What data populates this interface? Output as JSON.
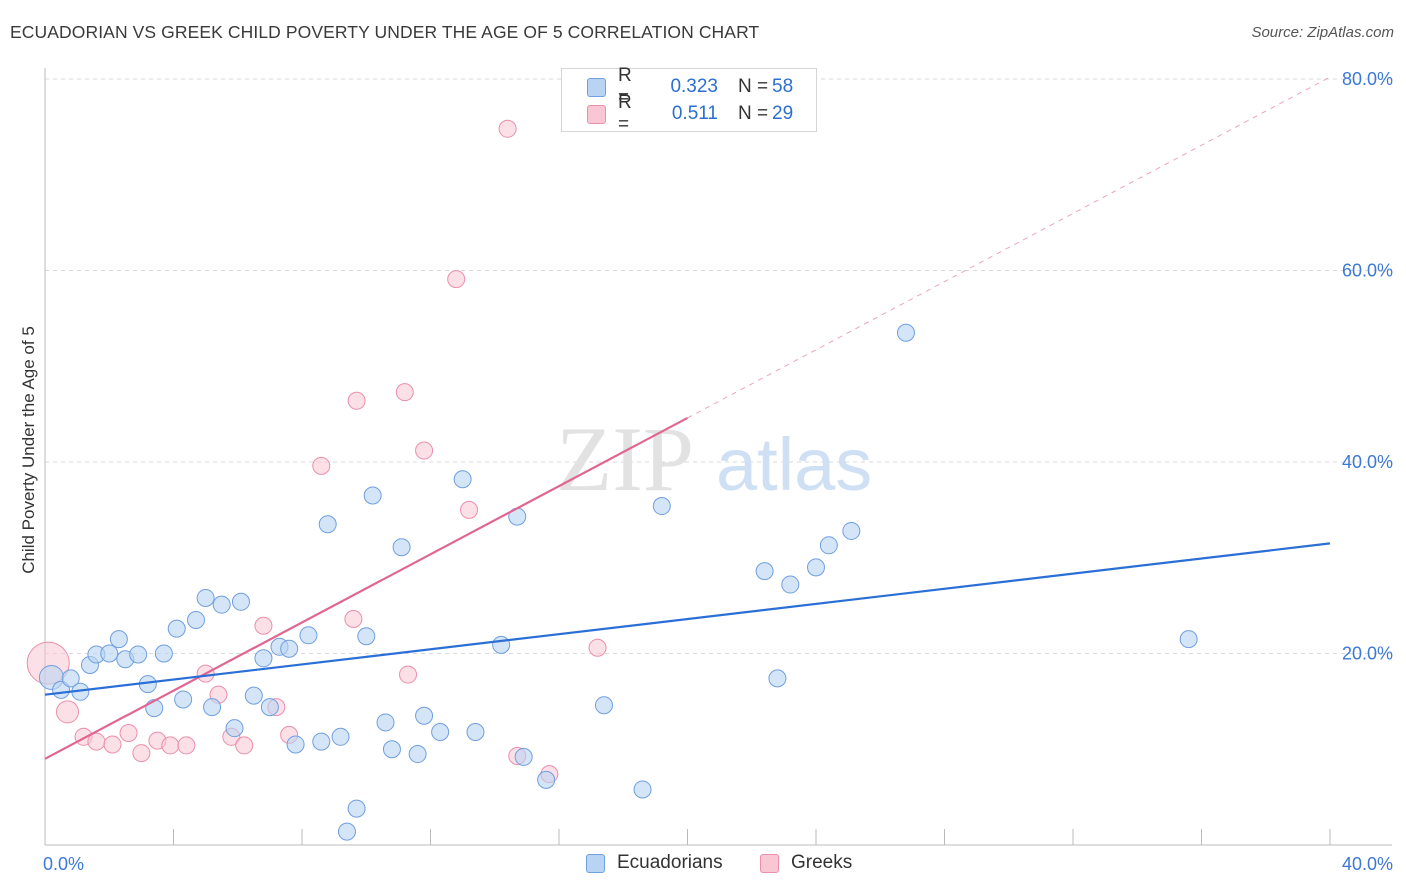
{
  "header": {
    "title": "ECUADORIAN VS GREEK CHILD POVERTY UNDER THE AGE OF 5 CORRELATION CHART",
    "source": "Source: ZipAtlas.com"
  },
  "watermark": {
    "zip": "ZIP",
    "atlas": "atlas"
  },
  "legend": {
    "rows": [
      {
        "r_label": "R =",
        "r_value": "0.323",
        "n_label": "N =",
        "n_value": "58"
      },
      {
        "r_label": "R =",
        "r_value": "0.511",
        "n_label": "N =",
        "n_value": "29"
      }
    ]
  },
  "bottom_legend": {
    "items": [
      "Ecuadorians",
      "Greeks"
    ]
  },
  "colors": {
    "ecuadorians_fill": "#b9d3f3",
    "ecuadorians_stroke": "#6f9fe0",
    "ecuadorians_line": "#2a6fd6",
    "greeks_fill": "#f9c6d3",
    "greeks_stroke": "#ec8fab",
    "greeks_line": "#e06691",
    "tick_label": "#3c78d8",
    "grid": "#d9d9d9"
  },
  "chart_data": {
    "type": "scatter",
    "title": "ECUADORIAN VS GREEK CHILD POVERTY UNDER THE AGE OF 5 CORRELATION CHART",
    "xlabel": "",
    "ylabel": "Child Poverty Under the Age of 5",
    "xlim": [
      0,
      40
    ],
    "ylim": [
      0,
      80
    ],
    "x_tick_labels": [
      "0.0%",
      "40.0%"
    ],
    "y_ticks": [
      20,
      40,
      60,
      80
    ],
    "y_tick_labels": [
      "20.0%",
      "40.0%",
      "60.0%",
      "80.0%"
    ],
    "grid": true,
    "legend_position": "top-center",
    "series": [
      {
        "name": "Ecuadorians",
        "R": 0.323,
        "N": 58,
        "trend": {
          "x": [
            0,
            40
          ],
          "y": [
            15.7,
            31.5
          ]
        },
        "points": [
          {
            "x": 0.2,
            "y": 17.5,
            "big": true
          },
          {
            "x": 0.5,
            "y": 16.2
          },
          {
            "x": 0.8,
            "y": 17.4
          },
          {
            "x": 1.1,
            "y": 16.0
          },
          {
            "x": 1.4,
            "y": 18.8
          },
          {
            "x": 1.6,
            "y": 19.9
          },
          {
            "x": 2.0,
            "y": 20.0
          },
          {
            "x": 2.3,
            "y": 21.5
          },
          {
            "x": 2.5,
            "y": 19.4
          },
          {
            "x": 2.9,
            "y": 19.9
          },
          {
            "x": 3.2,
            "y": 16.8
          },
          {
            "x": 3.4,
            "y": 14.3
          },
          {
            "x": 3.7,
            "y": 20.0
          },
          {
            "x": 4.1,
            "y": 22.6
          },
          {
            "x": 4.3,
            "y": 15.2
          },
          {
            "x": 4.7,
            "y": 23.5
          },
          {
            "x": 5.0,
            "y": 25.8
          },
          {
            "x": 5.2,
            "y": 14.4
          },
          {
            "x": 5.5,
            "y": 25.1
          },
          {
            "x": 5.9,
            "y": 12.2
          },
          {
            "x": 6.1,
            "y": 25.4
          },
          {
            "x": 6.5,
            "y": 15.6
          },
          {
            "x": 6.8,
            "y": 19.5
          },
          {
            "x": 7.0,
            "y": 14.4
          },
          {
            "x": 7.3,
            "y": 20.7
          },
          {
            "x": 7.6,
            "y": 20.5
          },
          {
            "x": 7.8,
            "y": 10.5
          },
          {
            "x": 8.2,
            "y": 21.9
          },
          {
            "x": 8.6,
            "y": 10.8
          },
          {
            "x": 8.8,
            "y": 33.5
          },
          {
            "x": 9.2,
            "y": 11.3
          },
          {
            "x": 9.4,
            "y": 1.4
          },
          {
            "x": 9.7,
            "y": 3.8
          },
          {
            "x": 10.0,
            "y": 21.8
          },
          {
            "x": 10.2,
            "y": 36.5
          },
          {
            "x": 10.6,
            "y": 12.8
          },
          {
            "x": 10.8,
            "y": 10.0
          },
          {
            "x": 11.1,
            "y": 31.1
          },
          {
            "x": 11.6,
            "y": 9.5
          },
          {
            "x": 11.8,
            "y": 13.5
          },
          {
            "x": 12.3,
            "y": 11.8
          },
          {
            "x": 13.0,
            "y": 38.2
          },
          {
            "x": 13.4,
            "y": 11.8
          },
          {
            "x": 14.2,
            "y": 20.9
          },
          {
            "x": 14.7,
            "y": 34.3
          },
          {
            "x": 14.9,
            "y": 9.2
          },
          {
            "x": 15.6,
            "y": 6.8
          },
          {
            "x": 17.4,
            "y": 14.6
          },
          {
            "x": 18.6,
            "y": 5.8
          },
          {
            "x": 19.2,
            "y": 35.4
          },
          {
            "x": 22.4,
            "y": 28.6
          },
          {
            "x": 22.8,
            "y": 17.4
          },
          {
            "x": 23.2,
            "y": 27.2
          },
          {
            "x": 24.0,
            "y": 29.0
          },
          {
            "x": 24.4,
            "y": 31.3
          },
          {
            "x": 25.1,
            "y": 32.8
          },
          {
            "x": 26.8,
            "y": 53.5
          },
          {
            "x": 35.6,
            "y": 21.5
          }
        ]
      },
      {
        "name": "Greeks",
        "R": 0.511,
        "N": 29,
        "trend": {
          "x": [
            0,
            20
          ],
          "y": [
            9.0,
            44.6
          ]
        },
        "trend_dashed_to": {
          "x": 40,
          "y": 80.2
        },
        "points": [
          {
            "x": 0.1,
            "y": 19.0,
            "big": true
          },
          {
            "x": 0.7,
            "y": 13.9,
            "big2": true
          },
          {
            "x": 1.2,
            "y": 11.3
          },
          {
            "x": 1.6,
            "y": 10.8
          },
          {
            "x": 2.1,
            "y": 10.5
          },
          {
            "x": 2.6,
            "y": 11.7
          },
          {
            "x": 3.0,
            "y": 9.6
          },
          {
            "x": 3.5,
            "y": 10.9
          },
          {
            "x": 3.9,
            "y": 10.4
          },
          {
            "x": 4.4,
            "y": 10.4
          },
          {
            "x": 5.0,
            "y": 17.9
          },
          {
            "x": 5.4,
            "y": 15.7
          },
          {
            "x": 5.8,
            "y": 11.3
          },
          {
            "x": 6.2,
            "y": 10.4
          },
          {
            "x": 6.8,
            "y": 22.9
          },
          {
            "x": 7.2,
            "y": 14.4
          },
          {
            "x": 7.6,
            "y": 11.5
          },
          {
            "x": 8.6,
            "y": 39.6
          },
          {
            "x": 9.6,
            "y": 23.6
          },
          {
            "x": 9.7,
            "y": 46.4
          },
          {
            "x": 11.2,
            "y": 47.3
          },
          {
            "x": 11.3,
            "y": 17.8
          },
          {
            "x": 11.8,
            "y": 41.2
          },
          {
            "x": 12.8,
            "y": 59.1
          },
          {
            "x": 13.2,
            "y": 35.0
          },
          {
            "x": 14.4,
            "y": 74.8
          },
          {
            "x": 14.7,
            "y": 9.3
          },
          {
            "x": 15.7,
            "y": 7.4
          },
          {
            "x": 17.2,
            "y": 20.6
          }
        ]
      }
    ]
  }
}
